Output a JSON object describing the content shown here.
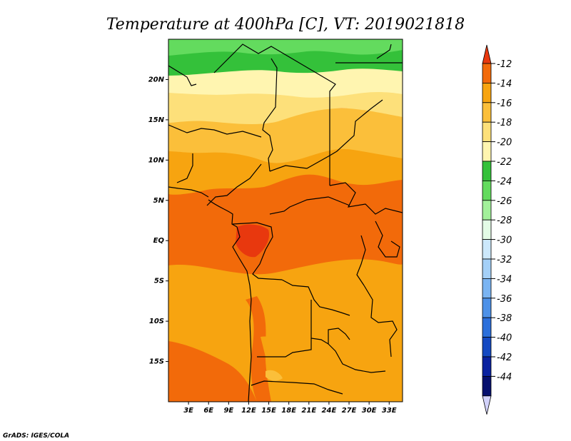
{
  "title": "Temperature at 400hPa [C], VT: 2019021818",
  "credit": "GrADS: IGES/COLA",
  "map": {
    "lon_range": [
      0,
      35
    ],
    "lat_range": [
      -20,
      25
    ],
    "lon_ticks": [
      "3E",
      "6E",
      "9E",
      "12E",
      "15E",
      "18E",
      "21E",
      "24E",
      "27E",
      "30E",
      "33E"
    ],
    "lat_ticks": [
      "20N",
      "15N",
      "10N",
      "5N",
      "EQ",
      "5S",
      "10S",
      "15S"
    ]
  },
  "colorbar": {
    "labels": [
      "-12",
      "-14",
      "-16",
      "-18",
      "-20",
      "-22",
      "-24",
      "-26",
      "-28",
      "-30",
      "-32",
      "-34",
      "-36",
      "-38",
      "-40",
      "-42",
      "-44"
    ],
    "colors": [
      "#e8380e",
      "#f26a0a",
      "#f7a410",
      "#fbbf3a",
      "#fde07a",
      "#fff5b0",
      "#34c13a",
      "#63db5e",
      "#a2f09a",
      "#e3fbe6",
      "#cce8fb",
      "#a4d0f7",
      "#7ab4f2",
      "#4d91e8",
      "#2b6fdb",
      "#1449c2",
      "#0a22a0",
      "#06106e",
      "#d2d2fb"
    ]
  }
}
